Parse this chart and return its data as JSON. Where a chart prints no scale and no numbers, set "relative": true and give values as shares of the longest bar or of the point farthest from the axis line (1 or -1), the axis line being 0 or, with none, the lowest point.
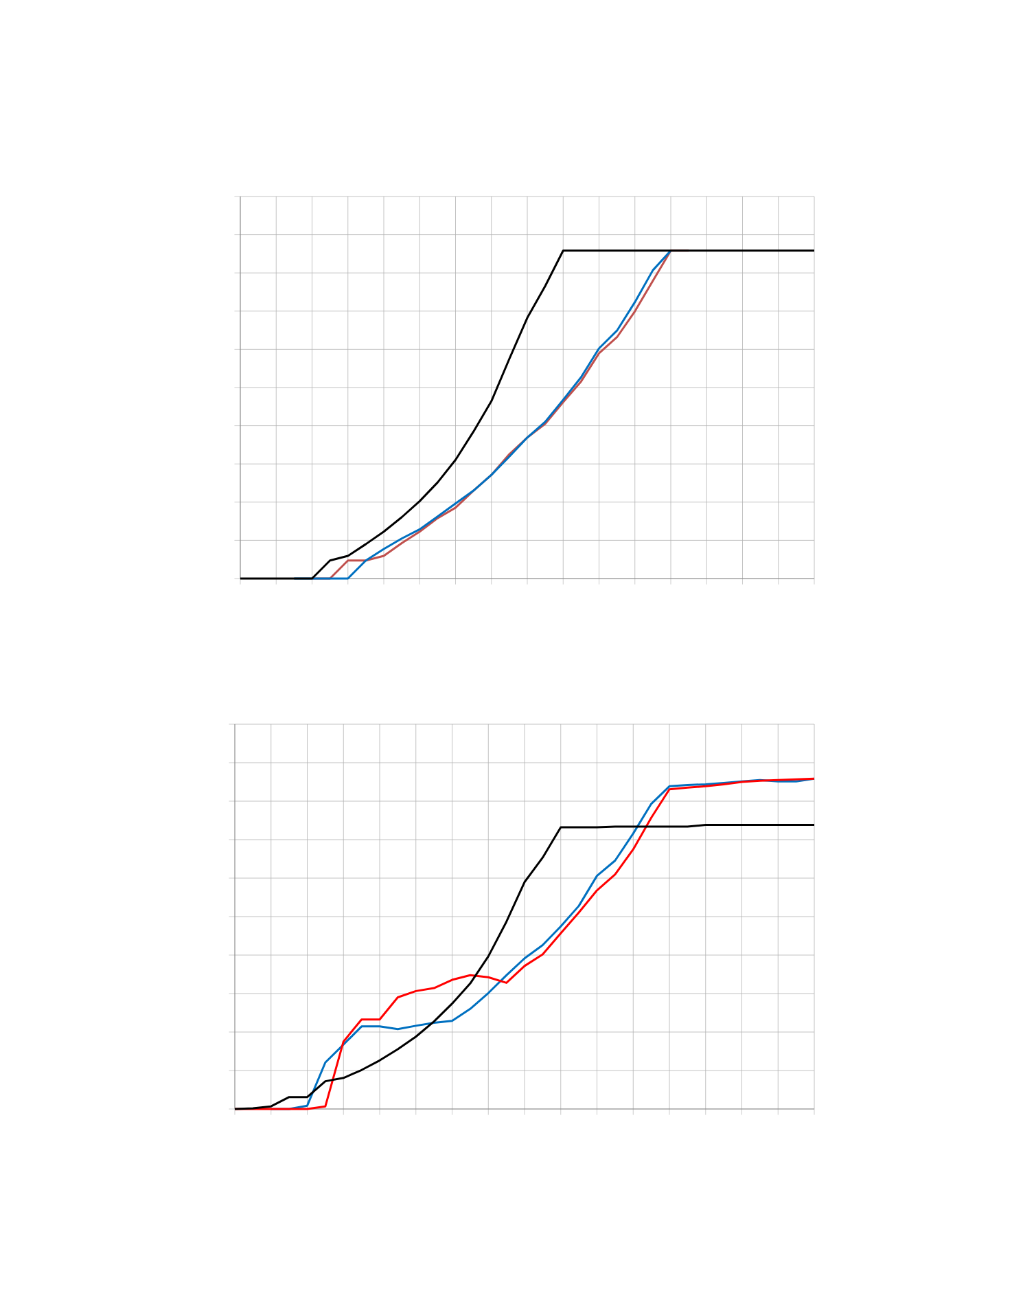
{
  "chart_data": [
    {
      "type": "line",
      "relative": true,
      "grid": true,
      "categories": [
        null,
        null,
        null,
        null,
        null,
        null,
        null,
        null,
        null,
        null,
        null,
        null,
        null,
        null,
        null,
        null,
        null,
        null,
        null,
        null,
        null,
        null,
        null,
        null,
        null,
        null,
        null,
        null,
        null,
        null,
        null,
        null,
        null
      ],
      "series": [
        {
          "color": "#c0504d",
          "values": [
            null,
            null,
            null,
            null,
            0,
            0,
            0.055,
            0.055,
            0.069,
            0.108,
            0.143,
            0.184,
            0.216,
            0.268,
            0.316,
            0.379,
            0.43,
            0.472,
            0.538,
            0.601,
            0.687,
            0.736,
            0.815,
            0.908,
            1,
            1,
            null,
            null,
            null,
            null,
            null,
            null,
            null
          ]
        },
        {
          "color": "#0070c0",
          "values": [
            null,
            null,
            null,
            0,
            0,
            0,
            0,
            0.055,
            0.09,
            0.122,
            0.15,
            0.189,
            0.229,
            0.268,
            0.316,
            0.372,
            0.43,
            0.478,
            0.545,
            0.614,
            0.702,
            0.756,
            0.843,
            0.94,
            1,
            null,
            null,
            null,
            null,
            null,
            null,
            null,
            null
          ]
        },
        {
          "color": "#000000",
          "values": [
            0,
            0,
            0,
            0,
            0,
            0.055,
            0.069,
            0.105,
            0.143,
            0.187,
            0.236,
            0.293,
            0.362,
            0.448,
            0.541,
            0.67,
            0.795,
            0.892,
            1,
            1,
            1,
            1,
            1,
            1,
            1,
            1,
            1,
            1,
            1,
            1,
            1,
            1,
            1
          ]
        }
      ]
    },
    {
      "type": "line",
      "relative": true,
      "grid": true,
      "categories": [
        null,
        null,
        null,
        null,
        null,
        null,
        null,
        null,
        null,
        null,
        null,
        null,
        null,
        null,
        null,
        null,
        null,
        null,
        null,
        null,
        null,
        null,
        null,
        null,
        null,
        null,
        null,
        null,
        null,
        null,
        null,
        null,
        null
      ],
      "series": [
        {
          "color": "#0070c0",
          "values": [
            null,
            null,
            0,
            0,
            0.01,
            0.141,
            0.195,
            0.25,
            0.25,
            0.242,
            0.252,
            0.261,
            0.267,
            0.303,
            0.351,
            0.405,
            0.456,
            0.496,
            0.553,
            0.615,
            0.706,
            0.752,
            0.834,
            0.924,
            0.977,
            0.981,
            0.983,
            0.987,
            0.992,
            0.996,
            0.992,
            0.992,
            1
          ]
        },
        {
          "color": "#ff0000",
          "values": [
            0,
            0,
            0,
            0,
            0,
            0.008,
            0.204,
            0.271,
            0.271,
            0.338,
            0.357,
            0.366,
            0.391,
            0.405,
            0.399,
            0.382,
            0.433,
            0.468,
            0.532,
            0.595,
            0.662,
            0.71,
            0.786,
            0.882,
            0.968,
            0.973,
            0.977,
            0.983,
            0.99,
            0.994,
            0.996,
            0.998,
            1
          ]
        },
        {
          "color": "#000000",
          "values": [
            0,
            0.002,
            0.008,
            0.036,
            0.036,
            0.084,
            0.094,
            0.118,
            0.147,
            0.181,
            0.219,
            0.265,
            0.319,
            0.38,
            0.462,
            0.567,
            0.687,
            0.761,
            0.853,
            0.853,
            0.853,
            0.855,
            0.855,
            0.855,
            0.855,
            0.855,
            0.86,
            0.86,
            0.86,
            0.86,
            0.86,
            0.86,
            0.86
          ]
        }
      ]
    }
  ]
}
